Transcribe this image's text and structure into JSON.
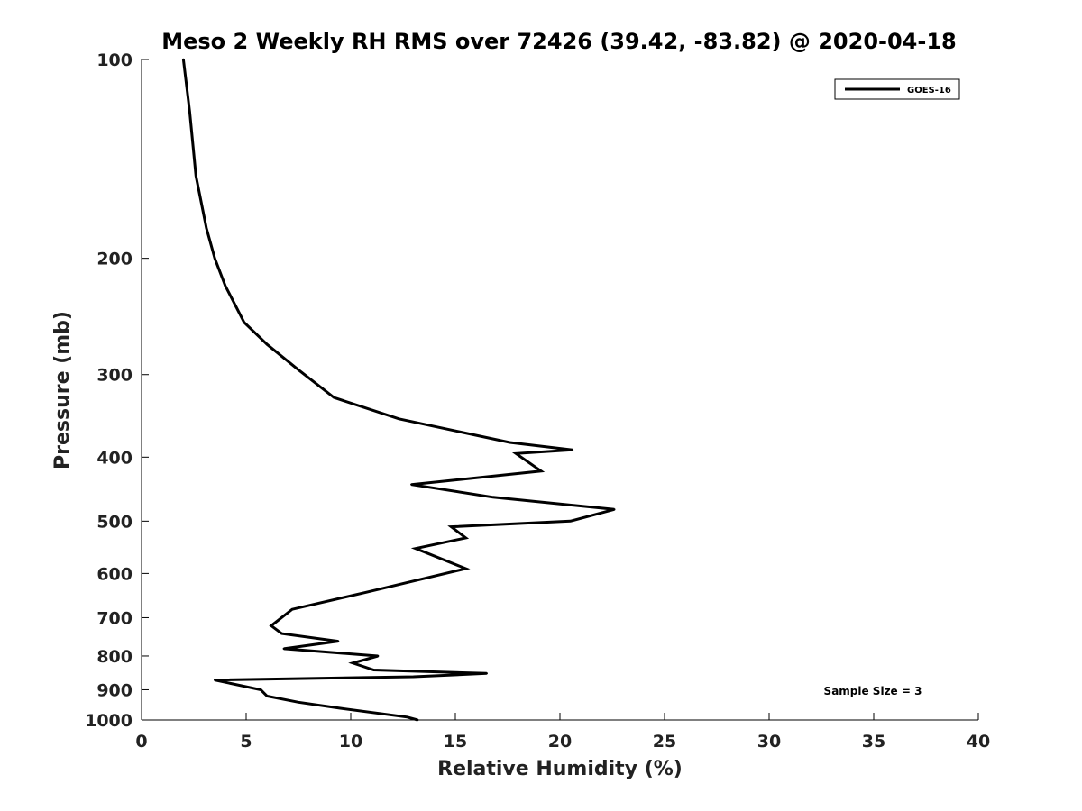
{
  "chart_data": {
    "type": "line",
    "title": "Meso 2 Weekly RH RMS over 72426 (39.42, -83.82) @ 2020-04-18",
    "xlabel": "Relative Humidity (%)",
    "ylabel": "Pressure (mb)",
    "xlim": [
      0,
      40
    ],
    "ylim": [
      100,
      1000
    ],
    "y_scale": "log",
    "y_reversed": true,
    "x_ticks": [
      0,
      5,
      10,
      15,
      20,
      25,
      30,
      35,
      40
    ],
    "y_ticks": [
      100,
      200,
      300,
      400,
      500,
      600,
      700,
      800,
      900,
      1000
    ],
    "grid": false,
    "legend_position": "top-right",
    "series": [
      {
        "name": "GOES-16",
        "color": "#000000",
        "x": [
          2.0,
          2.3,
          2.6,
          3.1,
          3.5,
          4.0,
          4.9,
          6.0,
          7.5,
          9.2,
          12.3,
          17.6,
          20.6,
          17.9,
          19.1,
          12.9,
          16.8,
          22.6,
          20.5,
          14.8,
          15.5,
          13.1,
          15.5,
          10.8,
          7.2,
          6.2,
          6.7,
          9.4,
          6.8,
          11.3,
          10.1,
          11.1,
          16.5,
          13.0,
          3.5,
          5.7,
          6.0,
          7.5,
          9.5,
          12.7,
          13.2
        ],
        "y": [
          100,
          120,
          150,
          180,
          200,
          220,
          250,
          270,
          295,
          325,
          350,
          380,
          390,
          395,
          420,
          440,
          460,
          480,
          500,
          510,
          530,
          550,
          590,
          640,
          680,
          720,
          740,
          760,
          780,
          800,
          820,
          840,
          850,
          860,
          870,
          900,
          920,
          940,
          960,
          990,
          1000
        ]
      }
    ],
    "annotations": [
      {
        "text": "Sample Size = 3",
        "position": "bottom-right"
      }
    ]
  }
}
